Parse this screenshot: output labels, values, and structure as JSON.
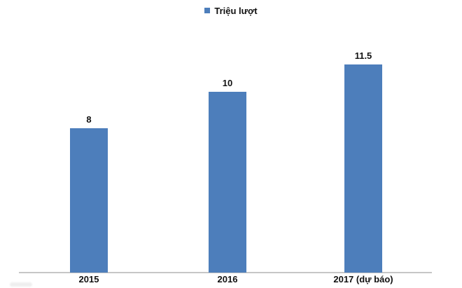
{
  "chart_data": {
    "type": "bar",
    "title": "",
    "categories": [
      "2015",
      "2016",
      "2017 (dự báo)"
    ],
    "series": [
      {
        "name": "Triệu lượt",
        "values": [
          8,
          10,
          11.5
        ]
      }
    ],
    "data_labels": [
      "8",
      "10",
      "11.5"
    ],
    "xlabel": "",
    "ylabel": "",
    "ylim": [
      0,
      12
    ],
    "grid": false,
    "legend_position": "top-center",
    "bar_color": "#4d7ebb",
    "axis_line_color": "#c6c6c6",
    "label_color": "#111111"
  }
}
